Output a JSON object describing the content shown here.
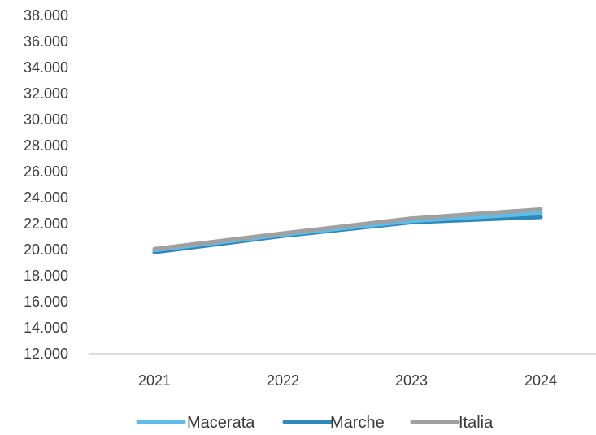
{
  "chart_data": {
    "type": "line",
    "title": "",
    "xlabel": "",
    "ylabel": "",
    "x": [
      "2021",
      "2022",
      "2023",
      "2024"
    ],
    "ylim": [
      12000,
      38000
    ],
    "y_step": 2000,
    "y_tick_labels": [
      "12.000",
      "14.000",
      "16.000",
      "18.000",
      "20.000",
      "22.000",
      "24.000",
      "26.000",
      "28.000",
      "30.000",
      "32.000",
      "34.000",
      "36.000",
      "38.000"
    ],
    "grid": false,
    "legend_position": "bottom",
    "series": [
      {
        "name": "Macerata",
        "color": "#5bbde8",
        "values": [
          19950,
          21150,
          22200,
          22800
        ]
      },
      {
        "name": "Marche",
        "color": "#2f86b8",
        "values": [
          19800,
          21050,
          22100,
          22500
        ]
      },
      {
        "name": "Italia",
        "color": "#a0a0a0",
        "values": [
          20050,
          21250,
          22400,
          23100
        ]
      }
    ]
  }
}
